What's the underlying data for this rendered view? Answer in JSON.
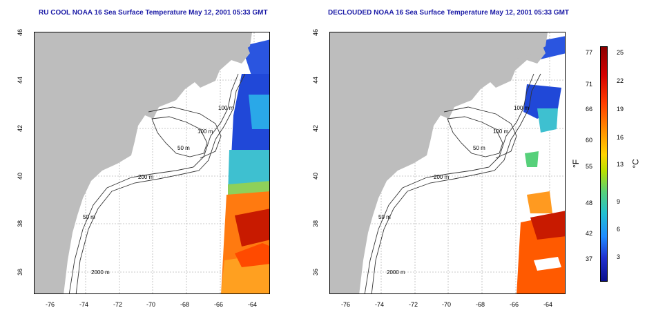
{
  "titles": {
    "left": "RU COOL NOAA 16 Sea Surface Temperature May 12, 2001 05:33 GMT",
    "right": "DECLOUDED NOAA 16 Sea Surface Temperature May 12, 2001 05:33 GMT"
  },
  "lat_ticks": [
    "46",
    "44",
    "42",
    "40",
    "38",
    "36"
  ],
  "lon_ticks": [
    "-76",
    "-74",
    "-72",
    "-70",
    "-68",
    "-66",
    "-64"
  ],
  "contours": [
    "100 m",
    "100 m",
    "50 m",
    "200 m",
    "50 m",
    "2000 m"
  ],
  "colorbar": {
    "fahrenheit": [
      "77",
      "71",
      "66",
      "60",
      "55",
      "48",
      "42",
      "37"
    ],
    "celsius": [
      "25",
      "22",
      "19",
      "16",
      "13",
      "9",
      "6",
      "3"
    ],
    "unit_f": "°F",
    "unit_c": "°C"
  },
  "colors": {
    "land": "#bdbdbd",
    "title": "#1a1aa6",
    "warm": "#d42a00",
    "cold": "#1e4fd8"
  }
}
